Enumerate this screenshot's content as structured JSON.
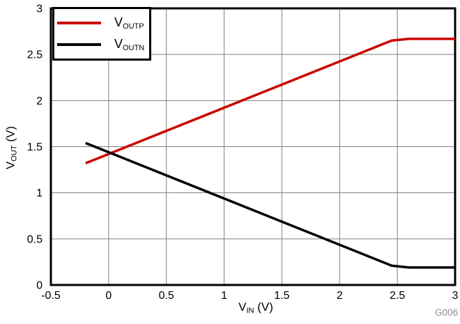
{
  "chart_data": {
    "type": "line",
    "title": "",
    "xlabel": {
      "main": "V",
      "sub": "IN",
      "suffix": " (V)"
    },
    "ylabel": {
      "main": "V",
      "sub": "OUT",
      "suffix": " (V)"
    },
    "xlim": [
      -0.5,
      3
    ],
    "ylim": [
      0,
      3
    ],
    "x_tick_labels": [
      "-0.5",
      "0",
      "0.5",
      "1",
      "1.5",
      "2",
      "2.5",
      "3"
    ],
    "y_tick_labels": [
      "0",
      "0.5",
      "1",
      "1.5",
      "2",
      "2.5",
      "3"
    ],
    "grid": true,
    "legend_position": "top-left",
    "series": [
      {
        "name_main": "V",
        "name_sub": "OUTP",
        "color": "#cc0000",
        "points": [
          [
            -0.2,
            1.32
          ],
          [
            2.45,
            2.65
          ],
          [
            2.6,
            2.67
          ],
          [
            3,
            2.67
          ]
        ]
      },
      {
        "name_main": "V",
        "name_sub": "OUTN",
        "color": "#000000",
        "points": [
          [
            -0.2,
            1.54
          ],
          [
            2.45,
            0.21
          ],
          [
            2.6,
            0.19
          ],
          [
            3,
            0.19
          ]
        ]
      }
    ],
    "watermark": "G006"
  },
  "colors": {
    "grid": "#7f7f7f",
    "axis_border": "#000000",
    "watermark": "#8f8f8f",
    "background": "#ffffff"
  }
}
